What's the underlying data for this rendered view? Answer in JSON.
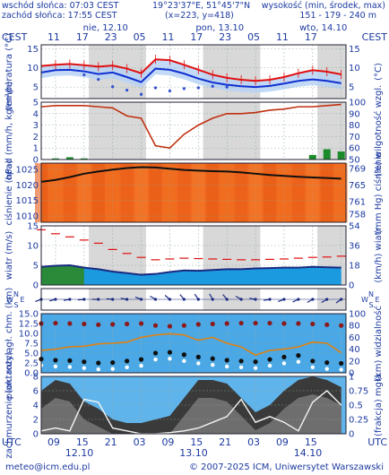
{
  "header": {
    "sunrise": "wschód słońca: 07:03 CEST",
    "sunset": "zachód słońca: 17:55 CEST",
    "coords": "19°23'37\"E, 51°45'7\"N",
    "grid": "(x=223, y=418)",
    "elevation_title": "wysokość (min, środek, max)",
    "elevation_values": "151 - 179 - 240 m"
  },
  "top_axis": {
    "tz": "CEST",
    "days": [
      {
        "label": "nie, 12.10"
      },
      {
        "label": "pon, 13.10"
      },
      {
        "label": "wto, 14.10"
      }
    ],
    "hours": [
      "11",
      "17",
      "23",
      "05",
      "11",
      "17",
      "23",
      "05",
      "11",
      "17"
    ]
  },
  "bottom_axis": {
    "tz": "UTC",
    "hours": [
      "09",
      "15",
      "21",
      "03",
      "09",
      "15",
      "21",
      "03",
      "09",
      "15"
    ],
    "dates": [
      "12.10",
      "13.10",
      "14.10"
    ]
  },
  "footer": {
    "email": "meteo@icm.edu.pl",
    "copyright": "© 2007-2025 ICM, Uniwersytet Warszawski"
  },
  "colors": {
    "red": "#e01010",
    "blue": "#1030d0",
    "orange": "#ff6010",
    "green": "#1a8a2a",
    "navy": "#1a2a80",
    "night": "#d8d8d8"
  },
  "chart_data": [
    {
      "type": "line",
      "name": "temperature",
      "ylabel_left": "temperatura (°C)",
      "ylabel_right": "(°C)",
      "ylim": [
        2,
        16
      ],
      "ticks": [
        5,
        10,
        15
      ],
      "x": [
        0,
        3,
        6,
        9,
        12,
        15,
        18,
        21,
        24,
        27,
        30,
        33,
        36,
        39,
        42,
        45,
        48,
        51,
        54,
        57,
        60,
        63
      ],
      "series": [
        {
          "role": "temperature",
          "color": "#e01010",
          "values": [
            10.5,
            10.8,
            11.0,
            10.7,
            10.3,
            10.6,
            9.8,
            8.6,
            12.2,
            12.0,
            10.8,
            9.5,
            8.2,
            7.4,
            6.9,
            6.6,
            6.9,
            7.6,
            8.6,
            9.4,
            9.0,
            8.3
          ]
        },
        {
          "role": "dew point",
          "color": "#1030d0",
          "values": [
            8.8,
            9.4,
            9.5,
            9.1,
            8.4,
            8.8,
            7.6,
            6.3,
            9.8,
            9.5,
            8.5,
            7.2,
            6.2,
            5.6,
            5.2,
            5.0,
            5.3,
            5.9,
            6.6,
            7.0,
            6.6,
            6.0
          ]
        },
        {
          "role": "minimum",
          "color": "#3050d0",
          "values": [
            null,
            null,
            null,
            8.2,
            7.0,
            5.1,
            4.2,
            3.1,
            4.8,
            4.0,
            4.6,
            4.8,
            5.2,
            5.0,
            null,
            null,
            null,
            null,
            null,
            null,
            null,
            null
          ]
        }
      ]
    },
    {
      "type": "bar",
      "name": "precipitation_humidity",
      "ylabel_left": "opad (mm/h, kg/m²/h)",
      "ylabel_right": "(%) wilgotność wzgl.",
      "ylim": [
        0,
        5
      ],
      "ticks_left": [
        0,
        1,
        2,
        3,
        4,
        5
      ],
      "ticks_right": [
        50,
        60,
        70,
        80,
        90,
        100
      ],
      "x": [
        0,
        3,
        6,
        9,
        12,
        15,
        18,
        21,
        24,
        27,
        30,
        33,
        36,
        39,
        42,
        45,
        48,
        51,
        54,
        57,
        60,
        63
      ],
      "series": [
        {
          "role": "relative humidity (%)",
          "color": "#c03010",
          "values": [
            96,
            97,
            97,
            97,
            96,
            95,
            88,
            86,
            62,
            60,
            72,
            80,
            86,
            90,
            90,
            91,
            93,
            94,
            96,
            96,
            97,
            98
          ]
        },
        {
          "role": "precipitation (mm/h)",
          "color": "#1a8a2a",
          "values": [
            0,
            0.1,
            0.2,
            0.1,
            0,
            0,
            0,
            0,
            0,
            0,
            0,
            0,
            0,
            0,
            0,
            0,
            0,
            0,
            0,
            0.4,
            0.9,
            0.7
          ]
        }
      ]
    },
    {
      "type": "area",
      "name": "pressure",
      "ylabel_left": "ciśnienie (hPa)",
      "ylabel_right": "(mm Hg) ciśnienie",
      "ylim": [
        1008,
        1027
      ],
      "ticks_left": [
        1010,
        1015,
        1020,
        1025
      ],
      "ticks_right": [
        "758",
        "761",
        "765",
        "769"
      ],
      "x": [
        0,
        3,
        6,
        9,
        12,
        15,
        18,
        21,
        24,
        27,
        30,
        33,
        36,
        39,
        42,
        45,
        48,
        51,
        54,
        57,
        60,
        63
      ],
      "series": [
        {
          "role": "pressure (hPa)",
          "color": "#101010",
          "values": [
            1021.0,
            1021.6,
            1022.5,
            1023.6,
            1024.3,
            1024.9,
            1025.4,
            1025.7,
            1025.6,
            1025.2,
            1024.8,
            1024.6,
            1024.4,
            1024.3,
            1024.0,
            1023.6,
            1023.2,
            1022.9,
            1022.6,
            1022.4,
            1022.2,
            1022.0
          ]
        }
      ]
    },
    {
      "type": "area",
      "name": "wind",
      "ylabel_left": "wiatr (m/s)",
      "ylabel_right": "(km/h) wiatr",
      "ylim": [
        0,
        15
      ],
      "ticks_left": [
        0,
        5,
        10,
        15
      ],
      "ticks_right": [
        0,
        18,
        36,
        54
      ],
      "x": [
        0,
        3,
        6,
        9,
        12,
        15,
        18,
        21,
        24,
        27,
        30,
        33,
        36,
        39,
        42,
        45,
        48,
        51,
        54,
        57,
        60,
        63
      ],
      "series": [
        {
          "role": "gusts (m/s)",
          "color": "#e01010",
          "values": [
            14.0,
            13.0,
            12.2,
            11.4,
            10.6,
            9.0,
            8.0,
            7.0,
            6.4,
            6.6,
            6.8,
            6.7,
            6.6,
            6.5,
            6.4,
            6.4,
            6.5,
            6.6,
            6.8,
            7.0,
            7.1,
            7.3
          ]
        },
        {
          "role": "wind speed (m/s)",
          "color": "#1a2a80",
          "values": [
            4.6,
            4.9,
            5.0,
            4.4,
            4.0,
            3.4,
            3.0,
            2.6,
            2.8,
            3.3,
            3.7,
            3.6,
            3.8,
            4.0,
            4.0,
            4.2,
            4.3,
            4.4,
            4.4,
            4.6,
            4.5,
            4.4
          ]
        }
      ]
    },
    {
      "type": "scatter",
      "name": "wind_direction",
      "x": [
        0,
        3,
        6,
        9,
        12,
        15,
        18,
        21,
        24,
        27,
        30,
        33,
        36,
        39,
        42,
        45,
        48,
        51,
        54,
        57,
        60,
        63
      ],
      "direction_deg": [
        250,
        255,
        260,
        265,
        270,
        275,
        280,
        290,
        300,
        310,
        320,
        325,
        330,
        320,
        300,
        280,
        260,
        250,
        245,
        240,
        240,
        235
      ]
    },
    {
      "type": "scatter",
      "name": "cloud_base_visibility",
      "ylabel_left": "pion. rozciągł. chm. (km)",
      "ylabel_right": "(km) widzialność",
      "ylim": [
        0,
        15
      ],
      "ticks_left": [
        0,
        2.5,
        5,
        7.5,
        10,
        12.5,
        15
      ],
      "ticks_right": [
        0,
        20,
        40,
        60,
        80,
        100
      ],
      "x": [
        0,
        3,
        6,
        9,
        12,
        15,
        18,
        21,
        24,
        27,
        30,
        33,
        36,
        39,
        42,
        45,
        48,
        51,
        54,
        57,
        60,
        63
      ],
      "series": [
        {
          "role": "visibility (km)",
          "color": "#e08010",
          "values": [
            38,
            40,
            44,
            45,
            49,
            50,
            52,
            60,
            64,
            66,
            64,
            55,
            60,
            50,
            44,
            30,
            38,
            40,
            44,
            52,
            50,
            34
          ]
        },
        {
          "role": "cloud top (km)",
          "color": "#8b1a1a",
          "values": [
            12.5,
            12.6,
            12.5,
            12.4,
            12.2,
            12.3,
            12.4,
            12.5,
            12.0,
            11.8,
            12.0,
            12.3,
            12.4,
            12.5,
            12.6,
            12.6,
            12.6,
            12.5,
            12.5,
            12.4,
            12.2,
            12.0
          ]
        },
        {
          "role": "cloud base (km)",
          "color": "#101010",
          "values": [
            3.5,
            3.2,
            3.1,
            2.8,
            2.5,
            2.6,
            3.0,
            3.4,
            5.0,
            5.2,
            4.6,
            4.0,
            3.6,
            3.2,
            3.0,
            2.8,
            3.4,
            4.0,
            4.4,
            3.0,
            2.6,
            2.4
          ]
        }
      ]
    },
    {
      "type": "area",
      "name": "cloudiness_fog",
      "ylabel_left": "zachmurzenie (oktanty)",
      "ylabel_right": "(frakcja) mgła",
      "ylim": [
        0,
        8
      ],
      "ticks_left": [
        0,
        2,
        4,
        6,
        8
      ],
      "ticks_right": [
        0,
        0.25,
        0.5,
        0.75,
        1
      ],
      "x": [
        0,
        3,
        6,
        9,
        12,
        15,
        18,
        21,
        24,
        27,
        30,
        33,
        36,
        39,
        42,
        45,
        48,
        51,
        54,
        57,
        60,
        63
      ],
      "series": [
        {
          "role": "total cloud (octas)",
          "color": "#2a2a2a",
          "values": [
            6.0,
            7.5,
            7.0,
            4.5,
            3.5,
            2.0,
            1.5,
            1.5,
            2.0,
            2.5,
            5.0,
            7.5,
            7.5,
            7.0,
            5.0,
            3.0,
            4.0,
            6.0,
            7.5,
            8.0,
            7.5,
            6.5
          ]
        },
        {
          "role": "fog (fraction)",
          "color": "#ffffff",
          "values": [
            0.05,
            0.1,
            0.05,
            0.6,
            0.55,
            0.1,
            0.05,
            0,
            0,
            0.02,
            0.05,
            0.1,
            0.2,
            0.3,
            0.6,
            0.2,
            0.3,
            0.2,
            0.05,
            0.55,
            0.75,
            0.5
          ]
        }
      ]
    }
  ]
}
